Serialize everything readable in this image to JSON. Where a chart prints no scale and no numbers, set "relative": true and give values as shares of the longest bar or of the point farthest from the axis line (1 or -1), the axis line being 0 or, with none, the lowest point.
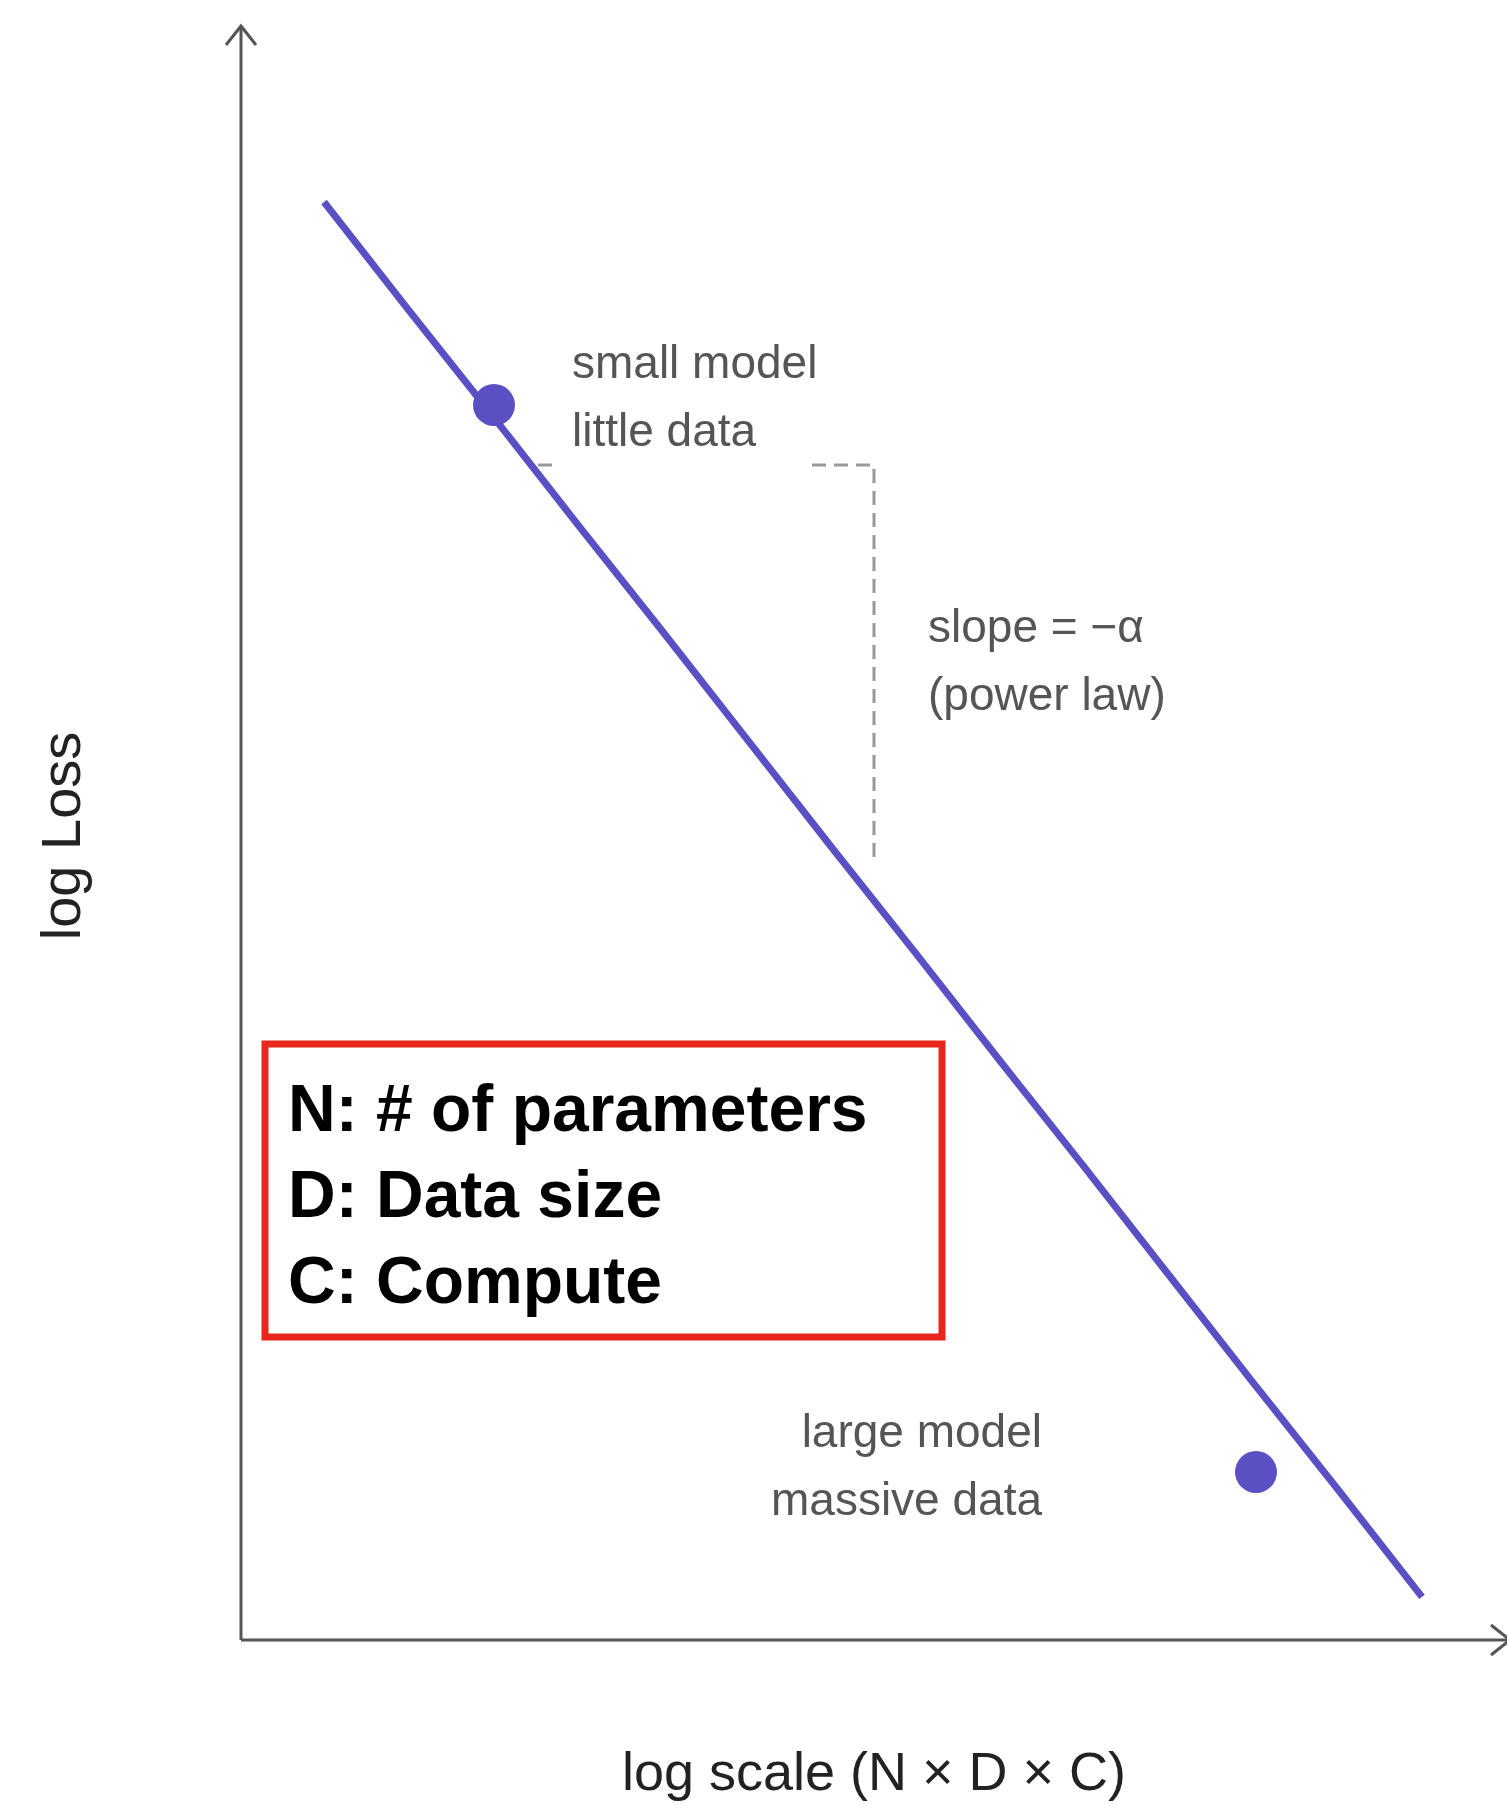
{
  "chart_data": {
    "type": "line",
    "relative": true,
    "xlabel": "log scale (N × D × C)",
    "ylabel": "log Loss",
    "categories": [
      null,
      null,
      null,
      null,
      null,
      null,
      null,
      null,
      null,
      null,
      null,
      null,
      null,
      null
    ],
    "series": [
      {
        "color": "#5b4fc4",
        "values": [
          1,
          0.925,
          0.851,
          0.776,
          0.702,
          0.627,
          0.552,
          0.478,
          0.403,
          0.329,
          0.254,
          0.179,
          0.105,
          0.03
        ]
      }
    ],
    "annotations": [
      "small model\nlittle data",
      "slope = −α\n(power law)",
      "large model\nmassive data",
      "N: # of parameters\nD: Data size\nC: Compute"
    ]
  }
}
